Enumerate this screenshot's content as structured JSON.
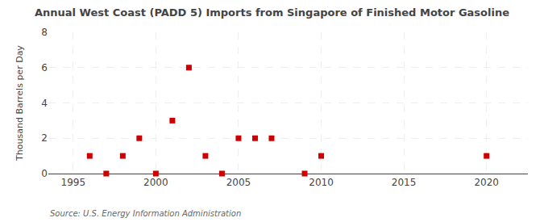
{
  "chart_data": {
    "type": "scatter",
    "title": "Annual West Coast (PADD 5) Imports from Singapore of Finished Motor Gasoline",
    "ylabel": "Thousand Barrels per Day",
    "annotations": [
      "Source: U.S. Energy Information Administration"
    ],
    "x": [
      1996,
      1997,
      1998,
      1999,
      2000,
      2001,
      2002,
      2003,
      2004,
      2005,
      2006,
      2007,
      2009,
      2010,
      2020
    ],
    "values": [
      1,
      0,
      1,
      2,
      0,
      3,
      6,
      1,
      0,
      2,
      2,
      2,
      0,
      1,
      1
    ],
    "color": "#cc0000",
    "marker": "square",
    "xlim": [
      1993.5,
      2022.5
    ],
    "xticks": [
      1995,
      2000,
      2005,
      2010,
      2015,
      2020
    ],
    "ylim": [
      0,
      8
    ],
    "yticks": [
      0,
      2,
      4,
      6,
      8
    ],
    "grid": true
  }
}
